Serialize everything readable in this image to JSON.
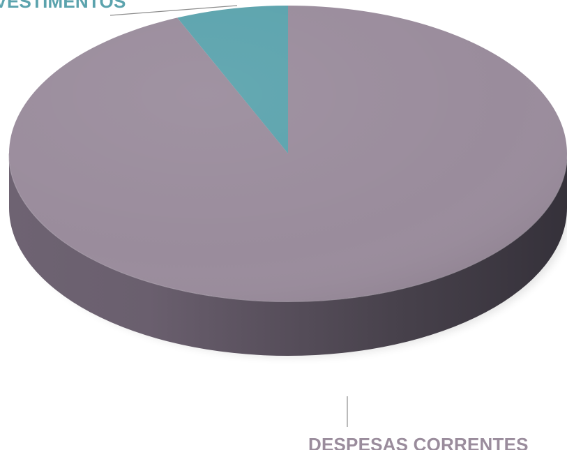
{
  "chart_data": {
    "type": "pie",
    "style": "3d",
    "title": "",
    "legend": "none",
    "slices": [
      {
        "label": "INVESTIMENTOS",
        "value": 6.5,
        "color": "#5ba3ad"
      },
      {
        "label": "DESPESAS CORRENTES",
        "value": 93.5,
        "color": "#9a8c9c"
      }
    ]
  },
  "labels": {
    "investimentos": "INVESTIMENTOS",
    "despesas_correntes": "DESPESAS CORRENTES"
  },
  "colors": {
    "investimentos": "#5ba3ad",
    "investimentos_side": "#3e7a82",
    "despesas_correntes": "#9a8c9c",
    "despesas_side_light": "#7d7180",
    "despesas_side_dark": "#3e3941",
    "leader_line": "#8c8c8c"
  }
}
